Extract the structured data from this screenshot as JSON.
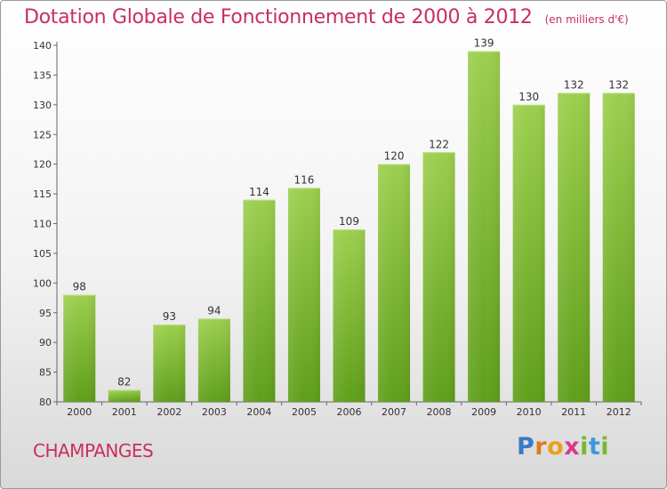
{
  "header": {
    "title": "Dotation Globale de Fonctionnement de 2000 à 2012",
    "unit": "(en milliers d'€)"
  },
  "commune": "CHAMPANGES",
  "logo": {
    "letters": [
      "P",
      "r",
      "o",
      "x",
      "i",
      "t",
      "i"
    ],
    "colors": [
      "#3a7ac8",
      "#e07a1a",
      "#e8a020",
      "#d83a8a",
      "#7ab830",
      "#3a9ad8",
      "#7ab830"
    ]
  },
  "chart_data": {
    "type": "bar",
    "title": "Dotation Globale de Fonctionnement de 2000 à 2012",
    "subtitle": "(en milliers d'€)",
    "xlabel": "",
    "ylabel": "",
    "categories": [
      "2000",
      "2001",
      "2002",
      "2003",
      "2004",
      "2005",
      "2006",
      "2007",
      "2008",
      "2009",
      "2010",
      "2011",
      "2012"
    ],
    "values": [
      98,
      82,
      93,
      94,
      114,
      116,
      109,
      120,
      122,
      139,
      130,
      132,
      132
    ],
    "ylim": [
      80,
      140
    ],
    "yticks": [
      80,
      85,
      90,
      95,
      100,
      105,
      110,
      115,
      120,
      125,
      130,
      135,
      140
    ],
    "grid": false,
    "bar_color_top": "#9ccf4e",
    "bar_color_bottom": "#5f9e1a"
  }
}
